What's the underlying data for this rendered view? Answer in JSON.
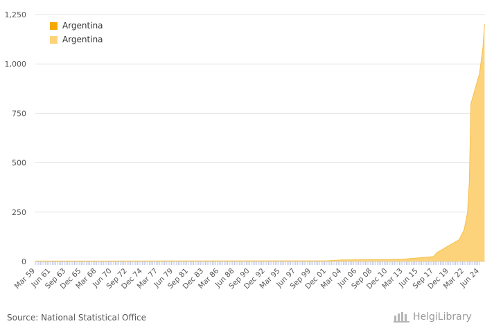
{
  "legend": [
    {
      "label": "Argentina",
      "color": "#f5a800"
    },
    {
      "label": "Argentina",
      "color": "#fcd37a"
    }
  ],
  "source": "Source: National Statistical Office",
  "brand": "HelgiLibrary",
  "chart_data": {
    "type": "area",
    "title": "",
    "xlabel": "",
    "ylabel": "",
    "ylim": [
      0,
      1250
    ],
    "yticks": [
      0,
      250,
      500,
      750,
      1000,
      1250
    ],
    "ytick_labels": [
      "0",
      "250",
      "500",
      "750",
      "1,000",
      "1,250"
    ],
    "xtick_labels": [
      "Mar 59",
      "Jun 61",
      "Sep 63",
      "Dec 65",
      "Mar 68",
      "Jun 70",
      "Sep 72",
      "Dec 74",
      "Mar 77",
      "Jun 79",
      "Sep 81",
      "Dec 83",
      "Mar 86",
      "Jun 88",
      "Sep 90",
      "Dec 92",
      "Mar 95",
      "Jun 97",
      "Sep 99",
      "Dec 01",
      "Mar 04",
      "Jun 06",
      "Sep 08",
      "Dec 10",
      "Mar 13",
      "Jun 15",
      "Sep 17",
      "Dec 19",
      "Mar 22",
      "Jun 24"
    ],
    "series": [
      {
        "name": "Argentina",
        "color": "#fcd37a",
        "points": [
          [
            "Mar 59",
            2
          ],
          [
            "Dec 01",
            3
          ],
          [
            "Mar 04",
            8
          ],
          [
            "Dec 10",
            10
          ],
          [
            "Mar 13",
            12
          ],
          [
            "Jun 15",
            18
          ],
          [
            "Sep 17",
            25
          ],
          [
            "Mar 18",
            45
          ],
          [
            "Dec 18",
            60
          ],
          [
            "Dec 19",
            80
          ],
          [
            "Sep 20",
            95
          ],
          [
            "Jun 21",
            110
          ],
          [
            "Mar 22",
            160
          ],
          [
            "Sep 22",
            250
          ],
          [
            "Dec 22",
            400
          ],
          [
            "Mar 23",
            800
          ],
          [
            "Jun 24",
            950
          ],
          [
            "Dec 24",
            1080
          ],
          [
            "Mar 25",
            1200
          ]
        ]
      }
    ]
  }
}
